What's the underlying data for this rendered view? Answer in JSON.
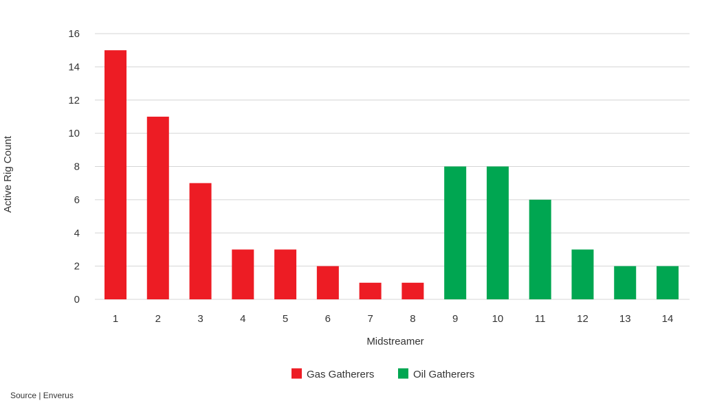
{
  "chart_data": {
    "type": "bar",
    "title": "",
    "xlabel": "Midstreamer",
    "ylabel": "Active Rig Count",
    "ylim": [
      0,
      16
    ],
    "yticks": [
      0,
      2,
      4,
      6,
      8,
      10,
      12,
      14,
      16
    ],
    "grid": true,
    "legend_position": "bottom",
    "categories": [
      "1",
      "2",
      "3",
      "4",
      "5",
      "6",
      "7",
      "8",
      "9",
      "10",
      "11",
      "12",
      "13",
      "14"
    ],
    "series": [
      {
        "name": "Gas Gatherers",
        "color": "#ed1c24",
        "values": [
          15,
          11,
          7,
          3,
          3,
          2,
          1,
          1,
          null,
          null,
          null,
          null,
          null,
          null
        ]
      },
      {
        "name": "Oil Gatherers",
        "color": "#00a651",
        "values": [
          null,
          null,
          null,
          null,
          null,
          null,
          null,
          null,
          8,
          8,
          6,
          3,
          2,
          2
        ]
      }
    ]
  },
  "source": "Source | Enverus"
}
